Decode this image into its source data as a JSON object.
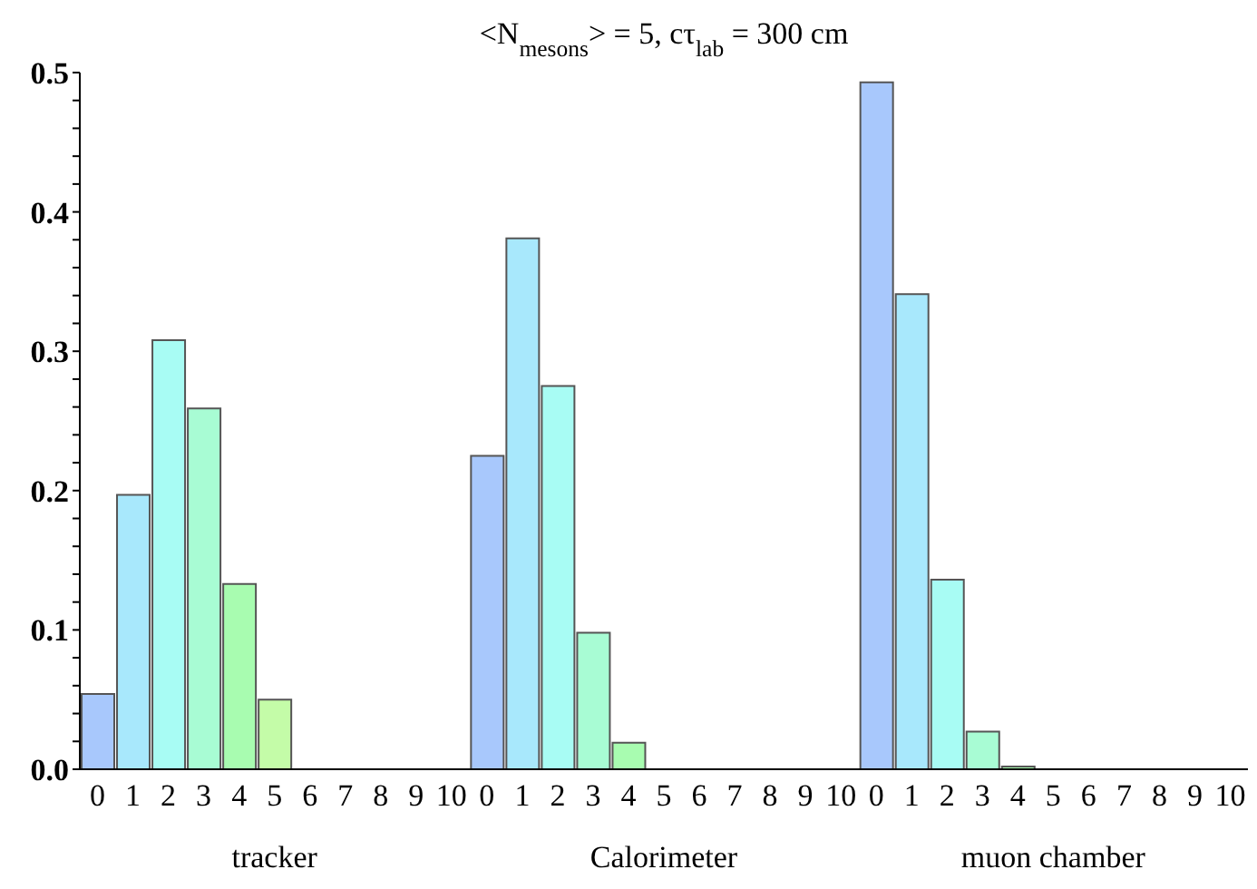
{
  "chart_data": {
    "type": "bar",
    "title": "<N$_{mesons}$> = 5,  cτ$_{lab}$ = 300 cm",
    "categories": [
      "0",
      "1",
      "2",
      "3",
      "4",
      "5",
      "6",
      "7",
      "8",
      "9",
      "10",
      "0",
      "1",
      "2",
      "3",
      "4",
      "5",
      "6",
      "7",
      "8",
      "9",
      "10",
      "0",
      "1",
      "2",
      "3",
      "4",
      "5",
      "6",
      "7",
      "8",
      "9",
      "10"
    ],
    "series": [
      {
        "values": [
          0.054,
          0.197,
          0.308,
          0.259,
          0.133,
          0.05,
          0,
          0,
          0,
          0,
          0,
          0.225,
          0.381,
          0.275,
          0.098,
          0.019,
          null,
          0,
          0,
          0,
          0,
          0,
          0.493,
          0.341,
          0.136,
          0.027,
          0.002,
          null,
          0,
          0,
          0,
          0,
          0
        ],
        "colors": [
          "#a8c8fc",
          "#a8e8fc",
          "#a8fcf4",
          "#a8fcd4",
          "#a8fcb0",
          "#c4fca8",
          "#d8fca8",
          "#e8fca8",
          "#f4fca8",
          "#fcf4a8",
          "#fce8a8",
          "#a8c8fc",
          "#a8e8fc",
          "#a8fcf4",
          "#a8fcd4",
          "#a8fcb0",
          "#c4fca8",
          "#d8fca8",
          "#e8fca8",
          "#f4fca8",
          "#fcf4a8",
          "#fce8a8",
          "#a8c8fc",
          "#a8e8fc",
          "#a8fcf4",
          "#a8fcd4",
          "#a8fcb0",
          "#c4fca8",
          "#d8fca8",
          "#e8fca8",
          "#f4fca8",
          "#fcf4a8",
          "#fce8a8"
        ]
      }
    ],
    "ylim": [
      0,
      0.5
    ],
    "yticks": [
      {
        "value": 0,
        "label": "0.0"
      },
      {
        "value": 0.02,
        "label": null
      },
      {
        "value": 0.04,
        "label": null
      },
      {
        "value": 0.06,
        "label": null
      },
      {
        "value": 0.08,
        "label": null
      },
      {
        "value": 0.1,
        "label": "0.1"
      },
      {
        "value": 0.12,
        "label": null
      },
      {
        "value": 0.14,
        "label": null
      },
      {
        "value": 0.16,
        "label": null
      },
      {
        "value": 0.18,
        "label": null
      },
      {
        "value": 0.2,
        "label": "0.2"
      },
      {
        "value": 0.22,
        "label": null
      },
      {
        "value": 0.24,
        "label": null
      },
      {
        "value": 0.26,
        "label": null
      },
      {
        "value": 0.28,
        "label": null
      },
      {
        "value": 0.3,
        "label": "0.3"
      },
      {
        "value": 0.32,
        "label": null
      },
      {
        "value": 0.34,
        "label": null
      },
      {
        "value": 0.36,
        "label": null
      },
      {
        "value": 0.38,
        "label": null
      },
      {
        "value": 0.4,
        "label": "0.4"
      },
      {
        "value": 0.42,
        "label": null
      },
      {
        "value": 0.44,
        "label": null
      },
      {
        "value": 0.46,
        "label": null
      },
      {
        "value": 0.48,
        "label": null
      },
      {
        "value": 0.5,
        "label": "0.5"
      }
    ],
    "annotations": [
      "tracker",
      "Calorimeter",
      "muon chamber"
    ],
    "grid": false,
    "legend": false
  }
}
